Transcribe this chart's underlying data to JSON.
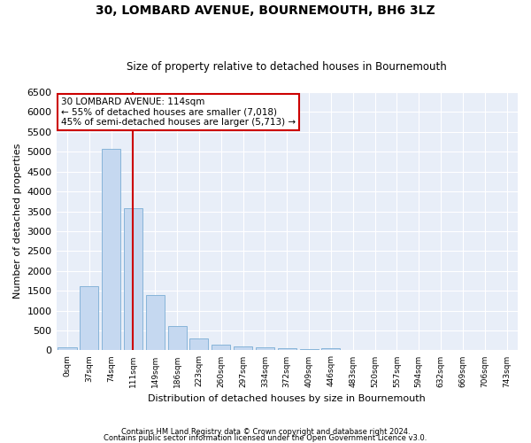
{
  "title1": "30, LOMBARD AVENUE, BOURNEMOUTH, BH6 3LZ",
  "title2": "Size of property relative to detached houses in Bournemouth",
  "xlabel": "Distribution of detached houses by size in Bournemouth",
  "ylabel": "Number of detached properties",
  "bar_labels": [
    "0sqm",
    "37sqm",
    "74sqm",
    "111sqm",
    "149sqm",
    "186sqm",
    "223sqm",
    "260sqm",
    "297sqm",
    "334sqm",
    "372sqm",
    "409sqm",
    "446sqm",
    "483sqm",
    "520sqm",
    "557sqm",
    "594sqm",
    "632sqm",
    "669sqm",
    "706sqm",
    "743sqm"
  ],
  "bar_values": [
    75,
    1620,
    5070,
    3570,
    1400,
    620,
    290,
    145,
    105,
    75,
    55,
    30,
    65,
    0,
    0,
    0,
    0,
    0,
    0,
    0,
    0
  ],
  "bar_color": "#c5d8f0",
  "bar_edge_color": "#7aadd4",
  "redline_x": 3,
  "redline_color": "#cc0000",
  "annotation_text": "30 LOMBARD AVENUE: 114sqm\n← 55% of detached houses are smaller (7,018)\n45% of semi-detached houses are larger (5,713) →",
  "annotation_box_color": "#ffffff",
  "annotation_box_edgecolor": "#cc0000",
  "ylim": [
    0,
    6500
  ],
  "yticks": [
    0,
    500,
    1000,
    1500,
    2000,
    2500,
    3000,
    3500,
    4000,
    4500,
    5000,
    5500,
    6000,
    6500
  ],
  "footer1": "Contains HM Land Registry data © Crown copyright and database right 2024.",
  "footer2": "Contains public sector information licensed under the Open Government Licence v3.0.",
  "bg_color": "#ffffff",
  "plot_bg_color": "#e8eef8",
  "grid_color": "#ffffff",
  "title_fontsize": 10,
  "subtitle_fontsize": 8.5
}
